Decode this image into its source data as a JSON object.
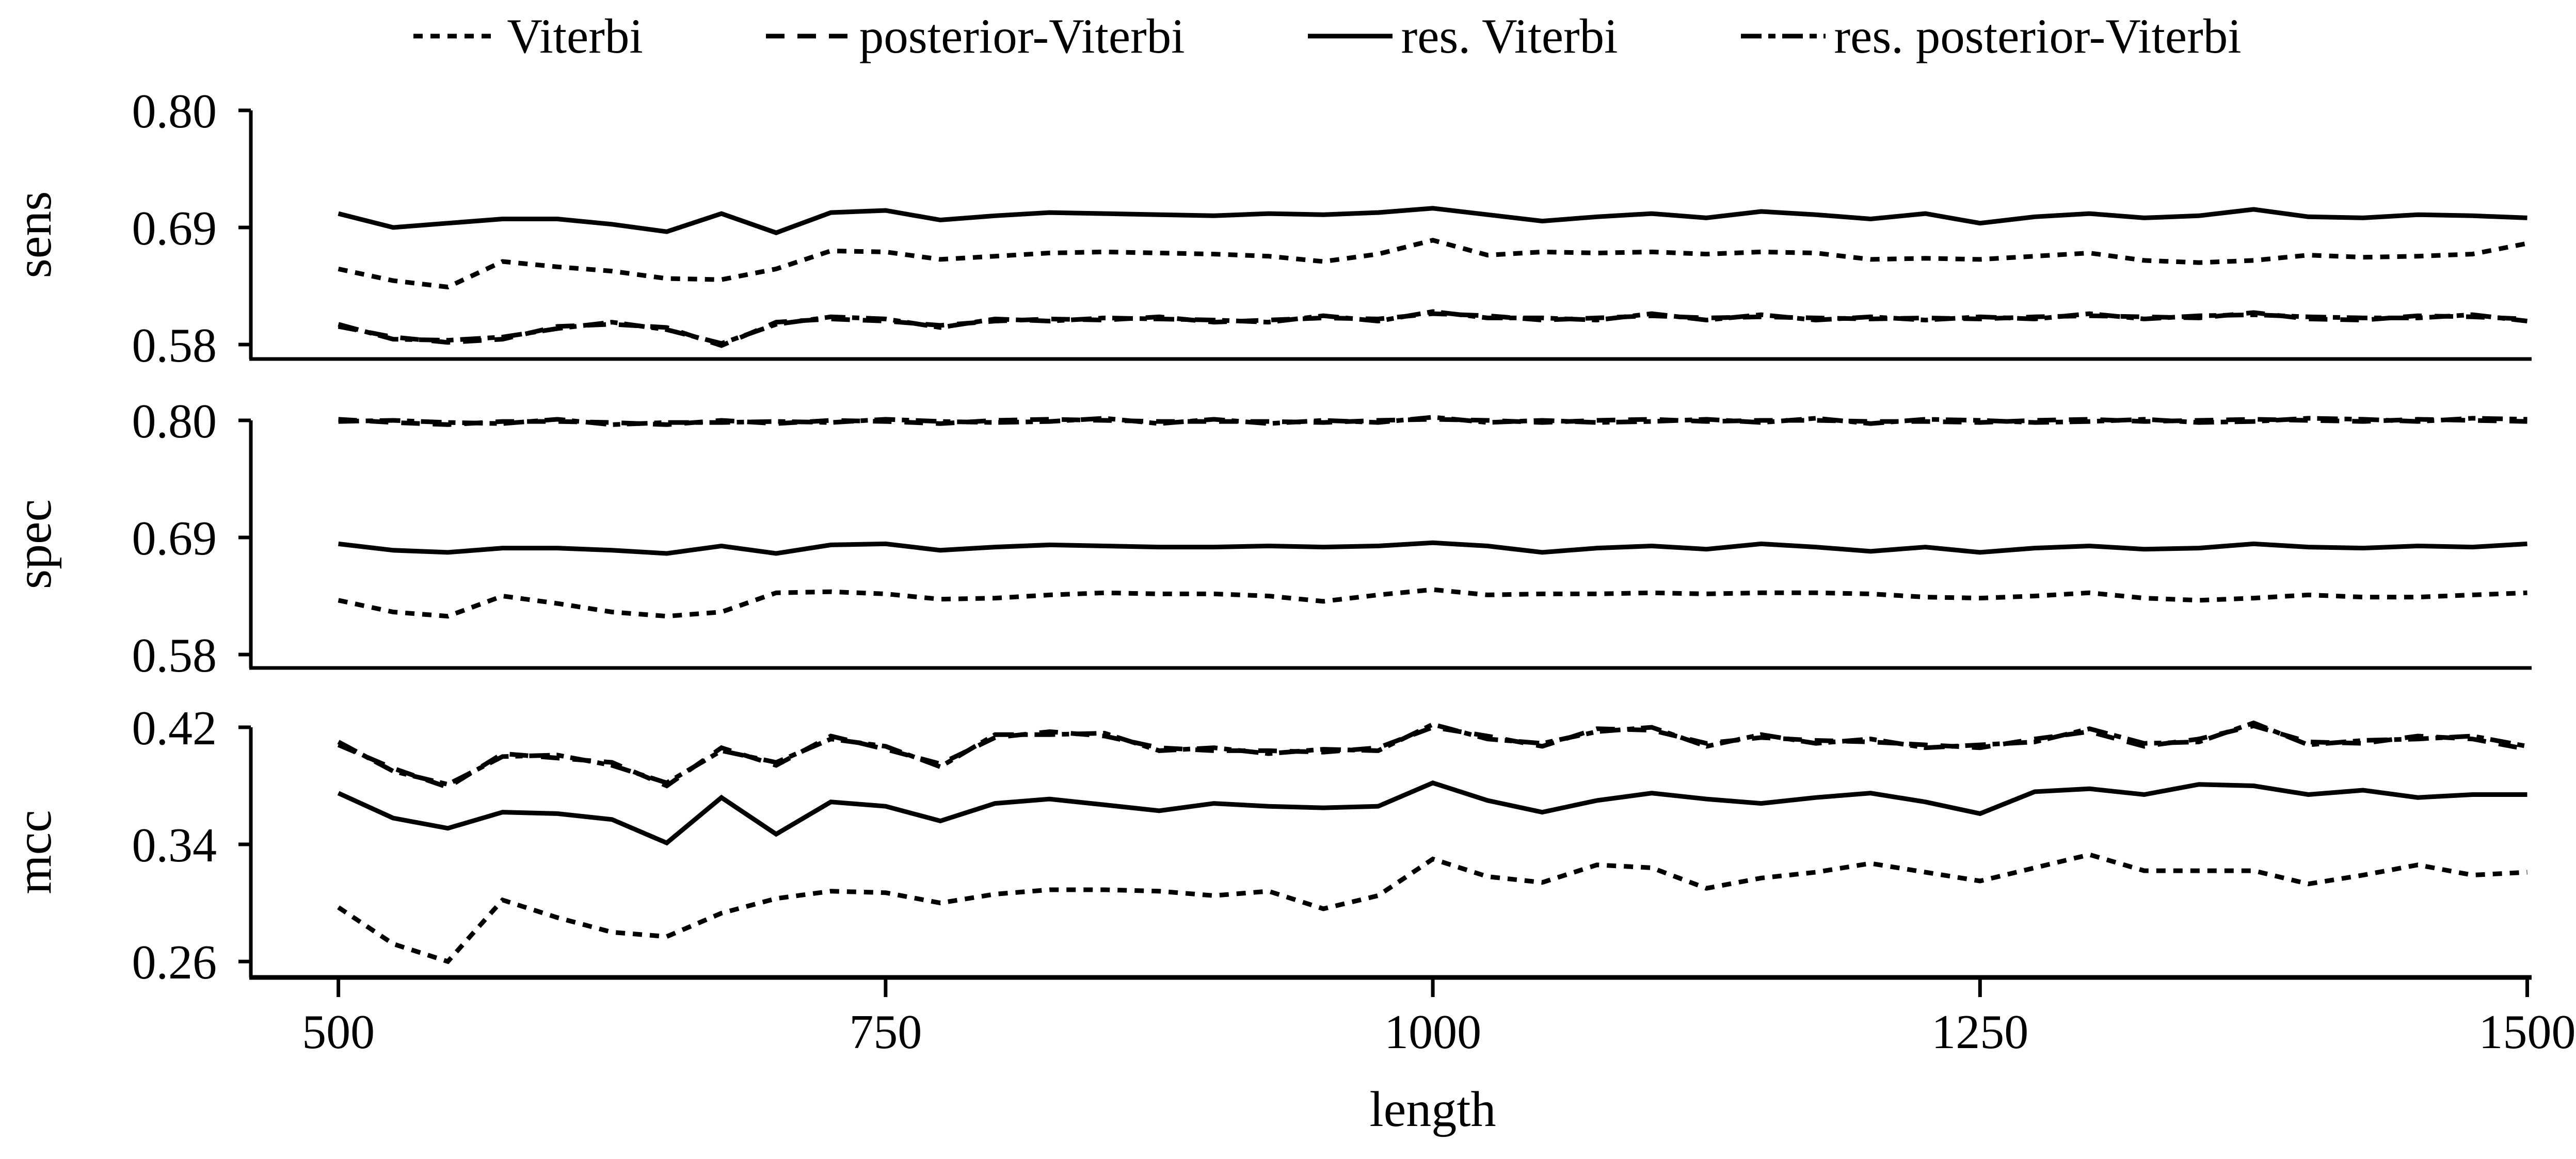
{
  "chart_data": {
    "type": "line",
    "title": "",
    "xlabel": "length",
    "xlim": [
      460,
      1502
    ],
    "xticks": [
      500,
      750,
      1000,
      1250,
      1500
    ],
    "x": [
      500,
      525,
      550,
      575,
      600,
      625,
      650,
      675,
      700,
      725,
      750,
      775,
      800,
      825,
      850,
      875,
      900,
      925,
      950,
      975,
      1000,
      1025,
      1050,
      1075,
      1100,
      1125,
      1150,
      1175,
      1200,
      1225,
      1250,
      1275,
      1300,
      1325,
      1350,
      1375,
      1400,
      1425,
      1450,
      1475,
      1500
    ],
    "legend": [
      {
        "label": "Viterbi",
        "style": "dotted",
        "series_key": "viterbi"
      },
      {
        "label": "posterior-Viterbi",
        "style": "dashed",
        "series_key": "posterior"
      },
      {
        "label": "res. Viterbi",
        "style": "solid",
        "series_key": "res_viterbi"
      },
      {
        "label": "res. posterior-Viterbi",
        "style": "dashdot",
        "series_key": "res_posterior"
      }
    ],
    "panels": [
      {
        "name": "sens",
        "ylabel": "sens",
        "yticks": [
          0.58,
          0.69,
          0.8
        ],
        "ylim": [
          0.5664,
          0.8
        ],
        "series": {
          "viterbi": [
            0.651,
            0.64,
            0.634,
            0.658,
            0.653,
            0.649,
            0.642,
            0.641,
            0.651,
            0.668,
            0.667,
            0.66,
            0.663,
            0.666,
            0.667,
            0.666,
            0.665,
            0.663,
            0.658,
            0.665,
            0.678,
            0.664,
            0.667,
            0.666,
            0.667,
            0.665,
            0.667,
            0.666,
            0.66,
            0.661,
            0.66,
            0.663,
            0.666,
            0.659,
            0.657,
            0.659,
            0.664,
            0.662,
            0.663,
            0.665,
            0.675
          ],
          "posterior": [
            0.597,
            0.587,
            0.582,
            0.585,
            0.597,
            0.599,
            0.596,
            0.579,
            0.601,
            0.604,
            0.602,
            0.598,
            0.602,
            0.604,
            0.603,
            0.606,
            0.601,
            0.603,
            0.605,
            0.604,
            0.609,
            0.607,
            0.603,
            0.605,
            0.607,
            0.605,
            0.606,
            0.605,
            0.604,
            0.605,
            0.604,
            0.606,
            0.607,
            0.606,
            0.605,
            0.61,
            0.604,
            0.603,
            0.607,
            0.606,
            0.604
          ],
          "res_viterbi": [
            0.703,
            0.69,
            0.694,
            0.698,
            0.698,
            0.693,
            0.686,
            0.703,
            0.685,
            0.704,
            0.706,
            0.697,
            0.701,
            0.704,
            0.703,
            0.702,
            0.701,
            0.703,
            0.702,
            0.704,
            0.708,
            0.702,
            0.696,
            0.7,
            0.703,
            0.699,
            0.705,
            0.702,
            0.698,
            0.703,
            0.694,
            0.7,
            0.703,
            0.699,
            0.701,
            0.707,
            0.7,
            0.699,
            0.702,
            0.701,
            0.699
          ],
          "res_posterior": [
            0.599,
            0.585,
            0.584,
            0.587,
            0.595,
            0.601,
            0.594,
            0.581,
            0.599,
            0.606,
            0.604,
            0.596,
            0.604,
            0.602,
            0.605,
            0.604,
            0.603,
            0.601,
            0.607,
            0.602,
            0.611,
            0.605,
            0.605,
            0.603,
            0.609,
            0.603,
            0.608,
            0.603,
            0.606,
            0.603,
            0.606,
            0.604,
            0.609,
            0.604,
            0.607,
            0.608,
            0.606,
            0.605,
            0.605,
            0.608,
            0.602
          ]
        }
      },
      {
        "name": "spec",
        "ylabel": "spec",
        "yticks": [
          0.58,
          0.69,
          0.8
        ],
        "ylim": [
          0.5674,
          0.8
        ],
        "series": {
          "viterbi": [
            0.631,
            0.62,
            0.616,
            0.635,
            0.628,
            0.62,
            0.616,
            0.62,
            0.638,
            0.639,
            0.637,
            0.632,
            0.633,
            0.636,
            0.638,
            0.637,
            0.637,
            0.635,
            0.63,
            0.636,
            0.641,
            0.636,
            0.637,
            0.637,
            0.638,
            0.637,
            0.638,
            0.638,
            0.637,
            0.634,
            0.633,
            0.635,
            0.638,
            0.633,
            0.631,
            0.633,
            0.636,
            0.634,
            0.634,
            0.636,
            0.638
          ],
          "posterior": [
            0.801,
            0.798,
            0.796,
            0.799,
            0.799,
            0.798,
            0.796,
            0.8,
            0.797,
            0.8,
            0.799,
            0.797,
            0.8,
            0.801,
            0.8,
            0.799,
            0.799,
            0.799,
            0.798,
            0.8,
            0.801,
            0.8,
            0.798,
            0.8,
            0.801,
            0.799,
            0.8,
            0.8,
            0.799,
            0.799,
            0.798,
            0.8,
            0.801,
            0.799,
            0.8,
            0.801,
            0.8,
            0.799,
            0.801,
            0.8,
            0.799
          ],
          "res_viterbi": [
            0.684,
            0.678,
            0.676,
            0.68,
            0.68,
            0.678,
            0.675,
            0.682,
            0.675,
            0.683,
            0.684,
            0.678,
            0.681,
            0.683,
            0.682,
            0.681,
            0.681,
            0.682,
            0.681,
            0.682,
            0.685,
            0.682,
            0.676,
            0.68,
            0.682,
            0.679,
            0.684,
            0.681,
            0.677,
            0.681,
            0.676,
            0.68,
            0.682,
            0.679,
            0.68,
            0.684,
            0.681,
            0.68,
            0.682,
            0.681,
            0.684
          ],
          "res_posterior": [
            0.799,
            0.8,
            0.798,
            0.797,
            0.801,
            0.796,
            0.798,
            0.798,
            0.799,
            0.798,
            0.801,
            0.799,
            0.798,
            0.799,
            0.802,
            0.797,
            0.801,
            0.797,
            0.8,
            0.798,
            0.803,
            0.798,
            0.8,
            0.798,
            0.799,
            0.801,
            0.798,
            0.802,
            0.797,
            0.801,
            0.8,
            0.798,
            0.799,
            0.801,
            0.798,
            0.799,
            0.802,
            0.801,
            0.799,
            0.802,
            0.801
          ]
        }
      },
      {
        "name": "mcc",
        "ylabel": "mcc",
        "yticks": [
          0.26,
          0.34,
          0.42
        ],
        "ylim": [
          0.2491,
          0.42
        ],
        "series": {
          "viterbi": [
            0.297,
            0.272,
            0.26,
            0.302,
            0.29,
            0.28,
            0.277,
            0.293,
            0.303,
            0.308,
            0.307,
            0.3,
            0.306,
            0.309,
            0.309,
            0.308,
            0.305,
            0.308,
            0.296,
            0.305,
            0.33,
            0.318,
            0.314,
            0.326,
            0.324,
            0.31,
            0.317,
            0.321,
            0.327,
            0.321,
            0.315,
            0.324,
            0.333,
            0.322,
            0.322,
            0.322,
            0.313,
            0.319,
            0.326,
            0.319,
            0.321
          ],
          "posterior": [
            0.408,
            0.392,
            0.379,
            0.402,
            0.399,
            0.396,
            0.38,
            0.406,
            0.394,
            0.414,
            0.405,
            0.395,
            0.413,
            0.417,
            0.414,
            0.406,
            0.404,
            0.404,
            0.403,
            0.406,
            0.42,
            0.414,
            0.407,
            0.419,
            0.418,
            0.409,
            0.413,
            0.411,
            0.41,
            0.408,
            0.406,
            0.412,
            0.417,
            0.407,
            0.412,
            0.421,
            0.41,
            0.409,
            0.414,
            0.412,
            0.405
          ],
          "res_viterbi": [
            0.375,
            0.358,
            0.351,
            0.362,
            0.361,
            0.357,
            0.341,
            0.372,
            0.347,
            0.369,
            0.366,
            0.356,
            0.368,
            0.371,
            0.367,
            0.363,
            0.368,
            0.366,
            0.365,
            0.366,
            0.382,
            0.37,
            0.362,
            0.37,
            0.375,
            0.371,
            0.368,
            0.372,
            0.375,
            0.369,
            0.361,
            0.376,
            0.378,
            0.374,
            0.381,
            0.38,
            0.374,
            0.377,
            0.372,
            0.374,
            0.374
          ],
          "res_posterior": [
            0.41,
            0.39,
            0.381,
            0.4,
            0.401,
            0.394,
            0.382,
            0.404,
            0.396,
            0.412,
            0.407,
            0.393,
            0.415,
            0.415,
            0.416,
            0.404,
            0.406,
            0.402,
            0.405,
            0.404,
            0.422,
            0.412,
            0.409,
            0.417,
            0.42,
            0.407,
            0.415,
            0.409,
            0.412,
            0.406,
            0.408,
            0.41,
            0.419,
            0.409,
            0.41,
            0.423,
            0.408,
            0.411,
            0.412,
            0.414,
            0.407
          ]
        }
      }
    ],
    "line_color": "#000000",
    "background_color": "#ffffff",
    "grid": false,
    "legend_position": "top"
  }
}
